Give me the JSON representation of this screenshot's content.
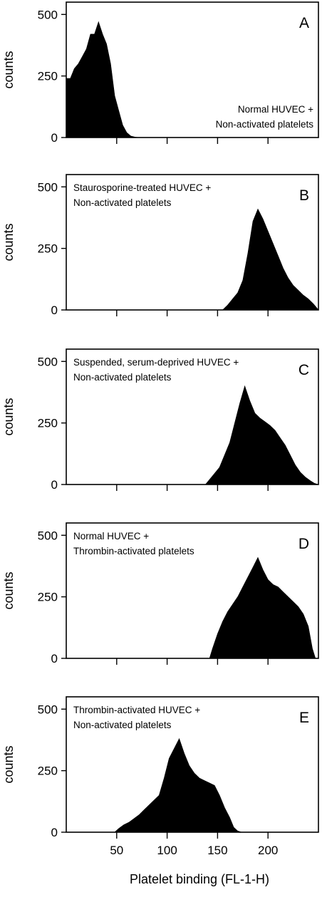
{
  "chart_data": [
    {
      "type": "area",
      "panel_label": "A",
      "annotation": [
        "Normal HUVEC +",
        "Non-activated platelets"
      ],
      "annotation_position": "bottom-right",
      "ylabel": "counts",
      "xlabel": "",
      "xlim": [
        0,
        250
      ],
      "ylim": [
        0,
        550
      ],
      "y_ticks": [
        0,
        250,
        500
      ],
      "x_ticks": [
        50,
        100,
        150,
        200
      ],
      "x_tick_labels": [
        "",
        "",
        "",
        ""
      ],
      "series": [
        {
          "x": [
            0,
            4,
            8,
            12,
            16,
            20,
            24,
            28,
            32,
            36,
            40,
            44,
            48,
            52,
            56,
            60,
            64,
            68,
            72,
            80,
            250
          ],
          "values": [
            240,
            240,
            280,
            300,
            330,
            360,
            420,
            420,
            470,
            420,
            380,
            300,
            170,
            110,
            50,
            20,
            6,
            2,
            0,
            0,
            0
          ]
        }
      ]
    },
    {
      "type": "area",
      "panel_label": "B",
      "annotation": [
        "Staurosporine-treated HUVEC +",
        "Non-activated platelets"
      ],
      "annotation_position": "top-left",
      "ylabel": "counts",
      "xlabel": "",
      "xlim": [
        0,
        250
      ],
      "ylim": [
        0,
        550
      ],
      "y_ticks": [
        0,
        250,
        500
      ],
      "x_ticks": [
        50,
        100,
        150,
        200
      ],
      "x_tick_labels": [
        "",
        "",
        "",
        ""
      ],
      "series": [
        {
          "x": [
            0,
            155,
            160,
            165,
            170,
            175,
            180,
            185,
            190,
            195,
            200,
            205,
            210,
            215,
            220,
            225,
            230,
            235,
            240,
            245,
            250
          ],
          "values": [
            0,
            0,
            20,
            45,
            70,
            120,
            230,
            360,
            410,
            370,
            320,
            270,
            220,
            170,
            130,
            100,
            80,
            60,
            45,
            25,
            0
          ]
        }
      ]
    },
    {
      "type": "area",
      "panel_label": "C",
      "annotation": [
        "Suspended, serum-deprived HUVEC +",
        "Non-activated platelets"
      ],
      "annotation_position": "top-left",
      "ylabel": "counts",
      "xlabel": "",
      "xlim": [
        0,
        250
      ],
      "ylim": [
        0,
        550
      ],
      "y_ticks": [
        0,
        250,
        500
      ],
      "x_ticks": [
        50,
        100,
        150,
        200
      ],
      "x_tick_labels": [
        "",
        "",
        "",
        ""
      ],
      "series": [
        {
          "x": [
            0,
            138,
            142,
            147,
            152,
            157,
            162,
            167,
            172,
            177,
            182,
            187,
            192,
            197,
            202,
            207,
            212,
            217,
            222,
            227,
            232,
            237,
            242,
            246,
            250
          ],
          "values": [
            0,
            0,
            20,
            45,
            70,
            120,
            170,
            250,
            330,
            400,
            340,
            290,
            270,
            255,
            240,
            220,
            190,
            160,
            120,
            80,
            50,
            30,
            15,
            5,
            0
          ]
        }
      ]
    },
    {
      "type": "area",
      "panel_label": "D",
      "annotation": [
        "Normal HUVEC +",
        "Thrombin-activated platelets"
      ],
      "annotation_position": "top-left",
      "ylabel": "counts",
      "xlabel": "",
      "xlim": [
        0,
        250
      ],
      "ylim": [
        0,
        550
      ],
      "y_ticks": [
        0,
        250,
        500
      ],
      "x_ticks": [
        50,
        100,
        150,
        200
      ],
      "x_tick_labels": [
        "",
        "",
        "",
        ""
      ],
      "series": [
        {
          "x": [
            0,
            142,
            145,
            150,
            155,
            160,
            165,
            170,
            175,
            180,
            185,
            190,
            195,
            200,
            205,
            210,
            215,
            220,
            225,
            230,
            235,
            240,
            244,
            247,
            250
          ],
          "values": [
            0,
            0,
            40,
            100,
            150,
            190,
            220,
            250,
            290,
            330,
            370,
            410,
            360,
            320,
            300,
            290,
            270,
            250,
            230,
            210,
            180,
            130,
            40,
            0,
            0
          ]
        }
      ]
    },
    {
      "type": "area",
      "panel_label": "E",
      "annotation": [
        "Thrombin-activated HUVEC +",
        "Non-activated platelets"
      ],
      "annotation_position": "top-left",
      "ylabel": "counts",
      "xlabel": "Platelet binding (FL-1-H)",
      "xlim": [
        0,
        250
      ],
      "ylim": [
        0,
        550
      ],
      "y_ticks": [
        0,
        250,
        500
      ],
      "x_ticks": [
        50,
        100,
        150,
        200
      ],
      "x_tick_labels": [
        "50",
        "100",
        "150",
        "200"
      ],
      "series": [
        {
          "x": [
            0,
            48,
            52,
            57,
            62,
            67,
            72,
            77,
            82,
            87,
            92,
            97,
            102,
            107,
            112,
            117,
            122,
            127,
            132,
            137,
            142,
            147,
            152,
            157,
            162,
            166,
            170,
            174,
            250
          ],
          "values": [
            0,
            0,
            15,
            30,
            40,
            55,
            70,
            90,
            110,
            130,
            150,
            220,
            300,
            340,
            380,
            320,
            270,
            240,
            220,
            210,
            200,
            190,
            150,
            100,
            60,
            20,
            5,
            0,
            0
          ]
        }
      ]
    }
  ]
}
